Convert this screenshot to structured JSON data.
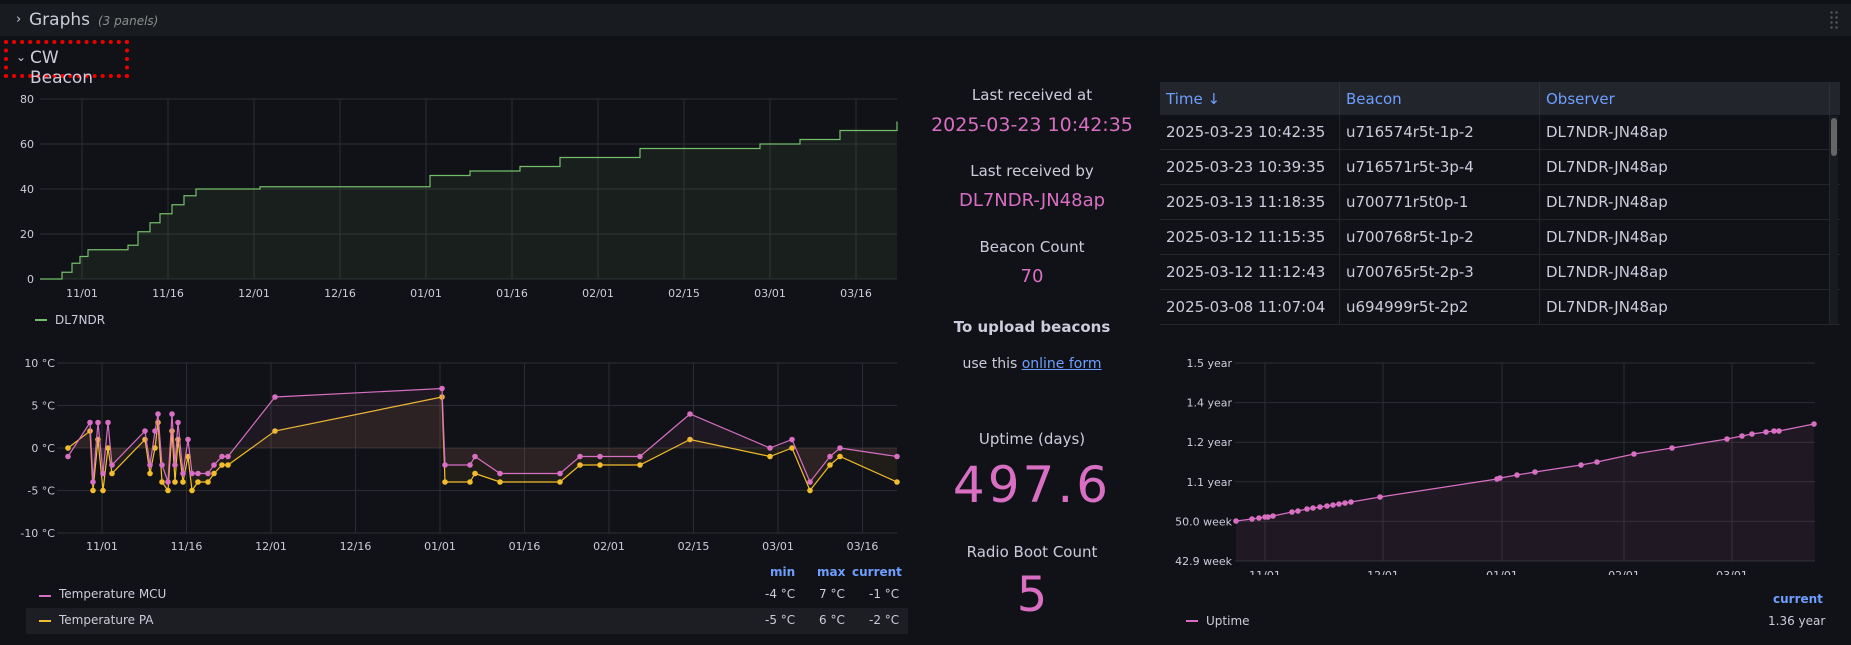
{
  "rows": {
    "graphs": {
      "chevron": "›",
      "title": "Graphs",
      "count": "(3 panels)"
    },
    "cw_beacon": {
      "chevron": "⌄",
      "title": "CW Beacon"
    }
  },
  "beacons_chart": {
    "y_ticks": [
      "0",
      "20",
      "40",
      "60",
      "80"
    ],
    "x_ticks": [
      "11/01",
      "11/16",
      "12/01",
      "12/16",
      "01/01",
      "01/16",
      "02/01",
      "02/15",
      "03/01",
      "03/16"
    ],
    "legend": "DL7NDR",
    "color": "#73bf69"
  },
  "temp_chart": {
    "y_ticks": [
      "10 °C",
      "5 °C",
      "0 °C",
      "-5 °C",
      "-10 °C"
    ],
    "x_ticks": [
      "11/01",
      "11/16",
      "12/01",
      "12/16",
      "01/01",
      "01/16",
      "02/01",
      "02/15",
      "03/01",
      "03/16"
    ],
    "col_headers": [
      "min",
      "max",
      "current"
    ],
    "series": [
      {
        "name": "Temperature MCU",
        "color": "#d86fc3",
        "min": "-4 °C",
        "max": "7 °C",
        "current": "-1 °C"
      },
      {
        "name": "Temperature PA",
        "color": "#f2bd2c",
        "min": "-5 °C",
        "max": "6 °C",
        "current": "-2 °C"
      }
    ]
  },
  "stats": {
    "last_received_at_label": "Last received at",
    "last_received_at": "2025-03-23 10:42:35",
    "last_received_by_label": "Last received by",
    "last_received_by": "DL7NDR-JN48ap",
    "beacon_count_label": "Beacon Count",
    "beacon_count": "70",
    "upload_title": "To upload beacons",
    "upload_text": "use this",
    "upload_link": "online form",
    "uptime_label": "Uptime (days)",
    "uptime_value": "497.6",
    "boot_label": "Radio Boot Count",
    "boot_value": "5"
  },
  "table": {
    "headers": [
      "Time",
      "Beacon",
      "Observer"
    ],
    "sort_icon": "↓",
    "rows": [
      [
        "2025-03-23 10:42:35",
        "u716574r5t-1p-2",
        "DL7NDR-JN48ap"
      ],
      [
        "2025-03-23 10:39:35",
        "u716571r5t-3p-4",
        "DL7NDR-JN48ap"
      ],
      [
        "2025-03-13 11:18:35",
        "u700771r5t0p-1",
        "DL7NDR-JN48ap"
      ],
      [
        "2025-03-12 11:15:35",
        "u700768r5t-1p-2",
        "DL7NDR-JN48ap"
      ],
      [
        "2025-03-12 11:12:43",
        "u700765r5t-2p-3",
        "DL7NDR-JN48ap"
      ],
      [
        "2025-03-08 11:07:04",
        "u694999r5t-2p2",
        "DL7NDR-JN48ap"
      ]
    ]
  },
  "uptime_chart": {
    "y_ticks": [
      "1.5 year",
      "1.4 year",
      "1.2 year",
      "1.1 year",
      "50.0 week",
      "42.9 week"
    ],
    "x_ticks": [
      "11/01",
      "12/01",
      "01/01",
      "02/01",
      "03/01"
    ],
    "legend": "Uptime",
    "current_label": "current",
    "current_value": "1.36 year",
    "color": "#d86fc3"
  }
}
